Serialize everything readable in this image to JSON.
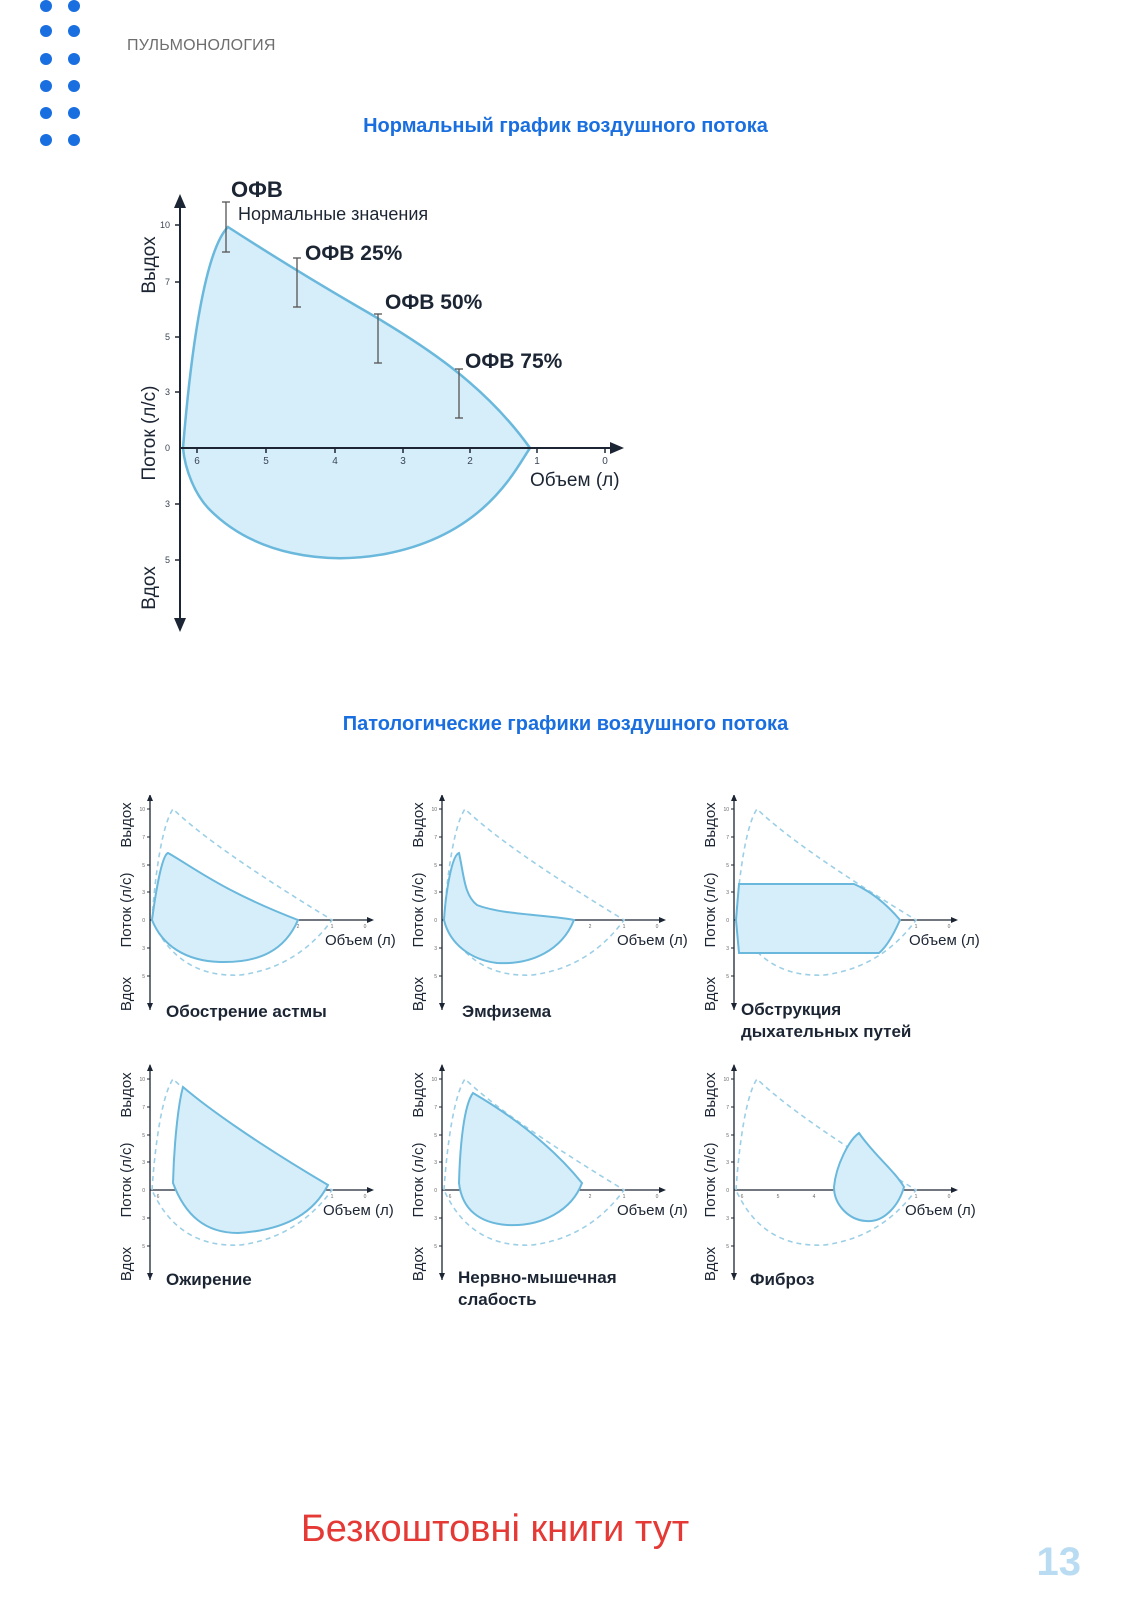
{
  "header": {
    "section": "ПУЛЬМОНОЛОГИЯ",
    "accent_color": "#1a6fe0"
  },
  "normal_chart": {
    "heading": "Нормальный график воздушного потока",
    "y_label_top": "Выдох",
    "y_label_mid": "Поток (л/с)",
    "y_label_bottom": "Вдох",
    "x_label": "Объем (л)",
    "x_ticks": [
      "6",
      "5",
      "4",
      "3",
      "2",
      "1",
      "0"
    ],
    "y_ticks_up": [
      "10",
      "7",
      "5",
      "3"
    ],
    "y_ticks_down": [
      "3",
      "5"
    ],
    "y_zero": "0",
    "annotations": {
      "peak": "ОФВ",
      "peak_note": "Нормальные значения",
      "fev25": "ОФВ 25%",
      "fev50": "ОФВ 50%",
      "fev75": "ОФВ 75%"
    }
  },
  "pathological": {
    "heading": "Патологические графики воздушного потока",
    "y_label_top": "Выдох",
    "y_label_mid": "Поток (л/с)",
    "y_label_bottom": "Вдох",
    "x_label": "Объем (л)",
    "charts": [
      {
        "label_line1": "Обострение астмы",
        "label_line2": ""
      },
      {
        "label_line1": "Эмфизема",
        "label_line2": ""
      },
      {
        "label_line1": "Обструкция",
        "label_line2": "дыхательных путей"
      },
      {
        "label_line1": "Ожирение",
        "label_line2": ""
      },
      {
        "label_line1": "Нервно-мышечная",
        "label_line2": "слабость"
      },
      {
        "label_line1": "Фиброз",
        "label_line2": ""
      }
    ]
  },
  "footer": {
    "link_text": "Безкоштовні книги тут",
    "page_number": "13",
    "link_color": "#e53935"
  }
}
